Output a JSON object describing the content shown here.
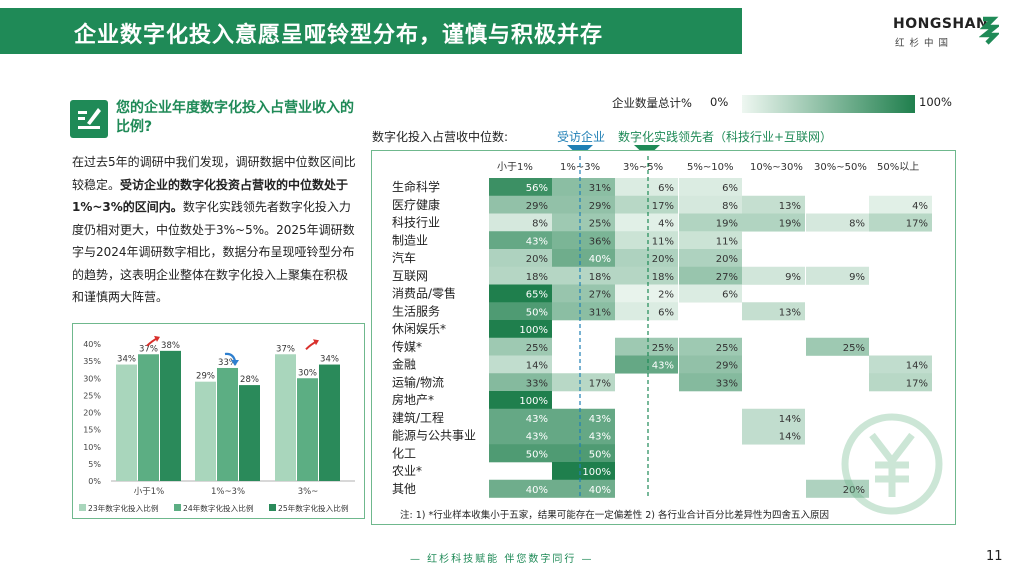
{
  "header": {
    "title": "企业数字化投入意愿呈哑铃型分布，谨慎与积极并存"
  },
  "logo": {
    "name": "HONGSHAN",
    "sub": "红杉中国"
  },
  "question": {
    "title": "您的企业年度数字化投入占营业收入的比例?"
  },
  "paragraph": {
    "p1": "在过去5年的调研中我们发现，调研数据中位数区间比较稳定。",
    "p2": "受访企业的数字化投资占营收的中位数处于1%~3%的区间内。",
    "p3": "数字化实践领先者数字化投入力度仍相对更大，中位数处于3%~5%。2025年调研数字与2024年调研数字相比，数据分布呈现哑铃型分布的趋势，这表明企业整体在数字化投入上聚集在积极和谨慎两大阵营。"
  },
  "legend_bar": {
    "label": "企业数量总计%",
    "min": "0%",
    "max": "100%"
  },
  "median": {
    "label": "数字化投入占营收中位数:",
    "surveyed": "受访企业",
    "leaders": "数字化实践领先者（科技行业+互联网）"
  },
  "colors": {
    "accent": "#1f8a57",
    "blue": "#1f7fb5",
    "bar23": "#a9d6bc",
    "bar24": "#5cae83",
    "bar25": "#2a8a5a"
  },
  "note": "注: 1) *行业样本收集小于五家，结果可能存在一定偏差性 2) 各行业合计百分比差异性为四舍五入原因",
  "footer": "— 红杉科技赋能   伴您数字同行 —",
  "page_number": "11",
  "chart_data": [
    {
      "type": "bar",
      "title": "",
      "categories": [
        "小于1%",
        "1%~3%",
        "3%~"
      ],
      "series": [
        {
          "name": "23年数字化投入比例",
          "values": [
            34,
            29,
            37
          ]
        },
        {
          "name": "24年数字化投入比例",
          "values": [
            37,
            33,
            30
          ]
        },
        {
          "name": "25年数字化投入比例",
          "values": [
            38,
            28,
            34
          ]
        }
      ],
      "value_labels": [
        [
          "34%",
          "37%",
          "38%"
        ],
        [
          "29%",
          "33%",
          "28%"
        ],
        [
          "37%",
          "30%",
          "34%"
        ]
      ],
      "yticks": [
        "0%",
        "5%",
        "10%",
        "15%",
        "20%",
        "25%",
        "30%",
        "35%",
        "40%"
      ],
      "ylim": [
        0,
        40
      ],
      "trend_arrows": [
        "up",
        "down",
        "up"
      ]
    },
    {
      "type": "heatmap",
      "columns": [
        "小于1%",
        "1%~3%",
        "3%~5%",
        "5%~10%",
        "10%~30%",
        "30%~50%",
        "50%以上"
      ],
      "rows": [
        {
          "name": "生命科学",
          "values": [
            56,
            31,
            6,
            6,
            null,
            null,
            null
          ]
        },
        {
          "name": "医疗健康",
          "values": [
            29,
            29,
            17,
            8,
            13,
            null,
            4
          ]
        },
        {
          "name": "科技行业",
          "values": [
            8,
            25,
            4,
            19,
            19,
            8,
            17
          ]
        },
        {
          "name": "制造业",
          "values": [
            43,
            36,
            11,
            11,
            null,
            null,
            null
          ]
        },
        {
          "name": "汽车",
          "values": [
            20,
            40,
            20,
            20,
            null,
            null,
            null
          ]
        },
        {
          "name": "互联网",
          "values": [
            18,
            18,
            18,
            27,
            9,
            9,
            null
          ]
        },
        {
          "name": "消费品/零售",
          "values": [
            65,
            27,
            2,
            6,
            null,
            null,
            null
          ]
        },
        {
          "name": "生活服务",
          "values": [
            50,
            31,
            6,
            null,
            13,
            null,
            null
          ]
        },
        {
          "name": "休闲娱乐*",
          "values": [
            100,
            null,
            null,
            null,
            null,
            null,
            null
          ]
        },
        {
          "name": "传媒*",
          "values": [
            25,
            null,
            25,
            25,
            null,
            25,
            null
          ]
        },
        {
          "name": "金融",
          "values": [
            14,
            null,
            43,
            29,
            null,
            null,
            14
          ]
        },
        {
          "name": "运输/物流",
          "values": [
            33,
            17,
            null,
            33,
            null,
            null,
            17
          ]
        },
        {
          "name": "房地产*",
          "values": [
            100,
            null,
            null,
            null,
            null,
            null,
            null
          ]
        },
        {
          "name": "建筑/工程",
          "values": [
            43,
            43,
            null,
            null,
            14,
            null,
            null
          ]
        },
        {
          "name": "能源与公共事业",
          "values": [
            43,
            43,
            null,
            null,
            14,
            null,
            null
          ]
        },
        {
          "name": "化工",
          "values": [
            50,
            50,
            null,
            null,
            null,
            null,
            null
          ]
        },
        {
          "name": "农业*",
          "values": [
            null,
            100,
            null,
            null,
            null,
            null,
            null
          ]
        },
        {
          "name": "其他",
          "values": [
            40,
            40,
            null,
            null,
            null,
            20,
            null
          ]
        }
      ],
      "median_markers": {
        "surveyed": "1%~3%",
        "leaders": "3%~5%"
      }
    }
  ]
}
